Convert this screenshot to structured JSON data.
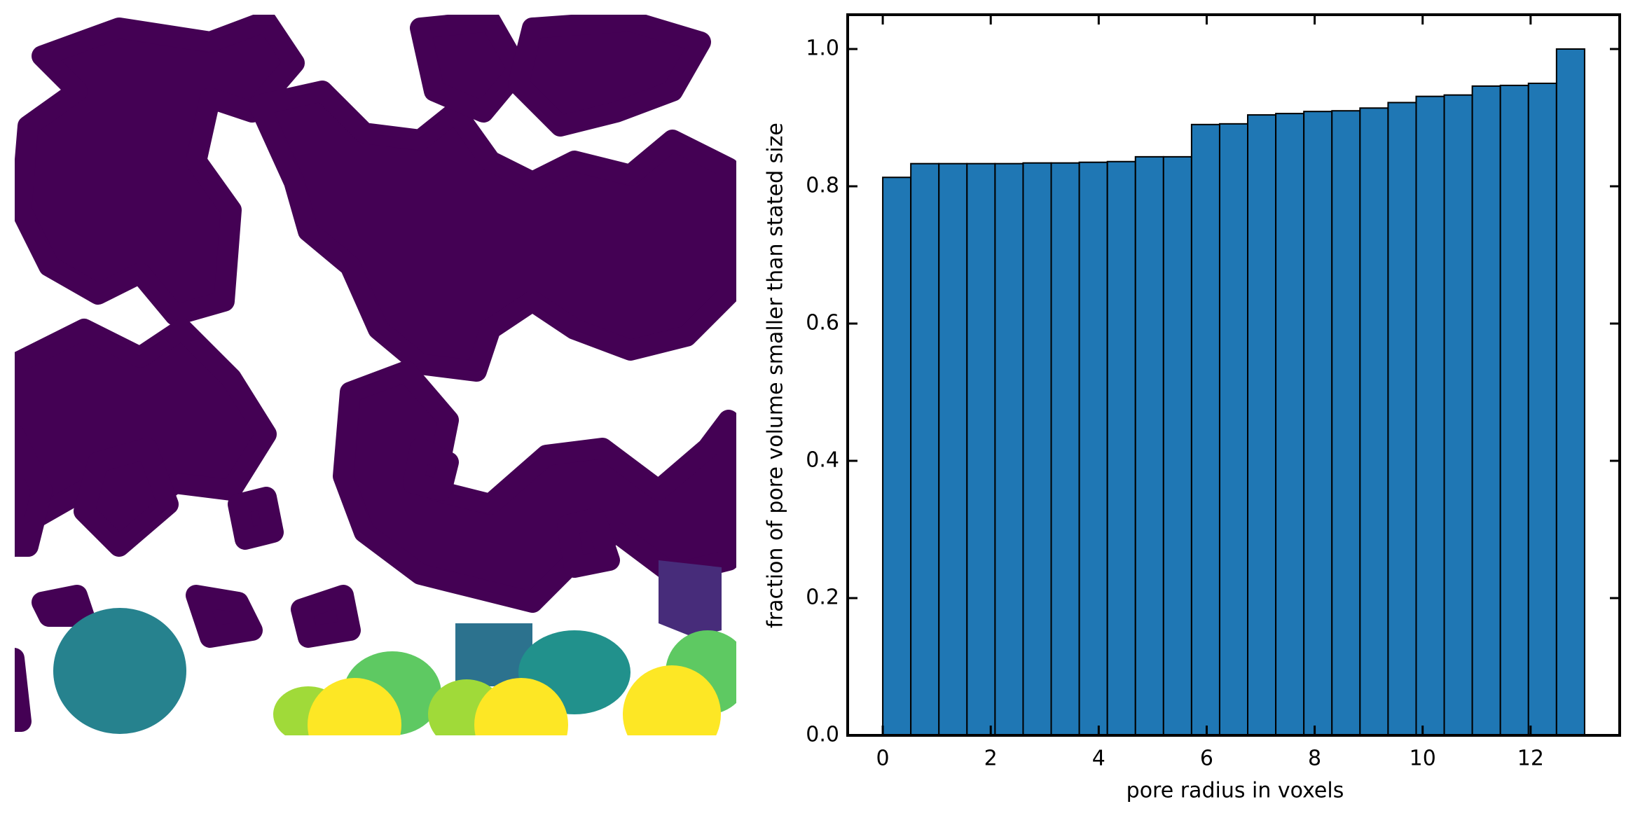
{
  "chart_data": {
    "type": "histogram",
    "xlabel": "pore radius in voxels",
    "ylabel": "fraction of pore volume smaller than stated size",
    "bins": [
      0,
      0.52,
      1.04,
      1.56,
      2.08,
      2.6,
      3.12,
      3.64,
      4.16,
      4.68,
      5.2,
      5.72,
      6.24,
      6.76,
      7.28,
      7.8,
      8.32,
      8.84,
      9.36,
      9.88,
      10.4,
      10.92,
      11.44,
      11.96,
      12.48,
      13
    ],
    "values": [
      0.813,
      0.833,
      0.833,
      0.833,
      0.833,
      0.834,
      0.834,
      0.835,
      0.836,
      0.843,
      0.843,
      0.89,
      0.891,
      0.904,
      0.906,
      0.909,
      0.91,
      0.914,
      0.922,
      0.931,
      0.933,
      0.946,
      0.947,
      0.95,
      1.0
    ],
    "color": "#1f77b4",
    "xlim": [
      -0.65,
      13.65
    ],
    "ylim": [
      0,
      1.05
    ],
    "xticks": [
      0,
      2,
      4,
      6,
      8,
      10,
      12
    ],
    "yticks": [
      {
        "value": 0,
        "label": "0.0"
      },
      0.2,
      0.4,
      0.6,
      0.8,
      {
        "value": 1,
        "label": "1.0"
      }
    ]
  }
}
